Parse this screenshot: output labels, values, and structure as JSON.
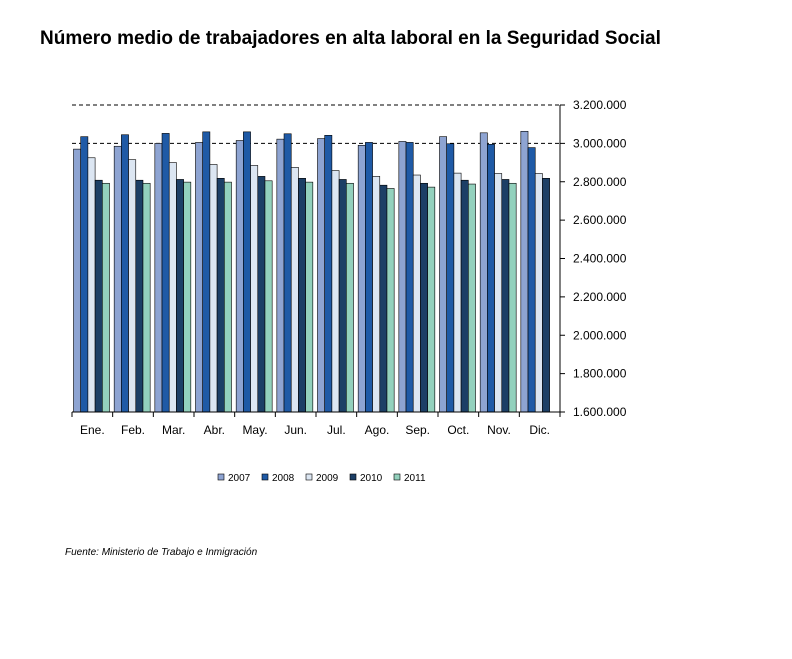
{
  "chart_data": {
    "type": "bar",
    "title": "Número medio de trabajadores en alta laboral en la Seguridad Social",
    "xlabel": "",
    "ylabel": "",
    "ylim": [
      1600000,
      3200000
    ],
    "yticks": [
      3200000,
      3000000,
      2800000,
      2600000,
      2400000,
      2200000,
      2000000,
      1800000,
      1600000
    ],
    "ytick_labels": [
      "3.200.000",
      "3.000.000",
      "2.800.000",
      "2.600.000",
      "2.400.000",
      "2.200.000",
      "2.000.000",
      "1.800.000",
      "1.600.000"
    ],
    "y_axis_side": "right",
    "grid": "dashed at 3.000.000 and 3.200.000",
    "legend_position": "bottom",
    "categories": [
      "Ene.",
      "Feb.",
      "Mar.",
      "Abr.",
      "May.",
      "Jun.",
      "Jul.",
      "Ago.",
      "Sep.",
      "Oct.",
      "Nov.",
      "Dic."
    ],
    "series": [
      {
        "name": "2007",
        "color": "#8ea4d2",
        "values": [
          2970000,
          2985000,
          3000000,
          3005000,
          3015000,
          3022000,
          3025000,
          2990000,
          3010000,
          3035000,
          3055000,
          3063000
        ]
      },
      {
        "name": "2008",
        "color": "#1f5aa6",
        "values": [
          3035000,
          3045000,
          3052000,
          3060000,
          3060000,
          3050000,
          3042000,
          3005000,
          3005000,
          2998000,
          2995000,
          2978000
        ]
      },
      {
        "name": "2009",
        "color": "#dce6f2",
        "values": [
          2925000,
          2915000,
          2900000,
          2890000,
          2885000,
          2875000,
          2858000,
          2828000,
          2835000,
          2845000,
          2843000,
          2843000
        ]
      },
      {
        "name": "2010",
        "color": "#1c3f66",
        "values": [
          2808000,
          2808000,
          2812000,
          2818000,
          2828000,
          2818000,
          2812000,
          2782000,
          2792000,
          2808000,
          2812000,
          2818000
        ]
      },
      {
        "name": "2011",
        "color": "#93d1bd",
        "values": [
          2792000,
          2792000,
          2798000,
          2798000,
          2805000,
          2798000,
          2792000,
          2765000,
          2772000,
          2788000,
          2792000,
          null
        ]
      }
    ]
  },
  "source": "Fuente: Ministerio de Trabajo e Inmigración"
}
